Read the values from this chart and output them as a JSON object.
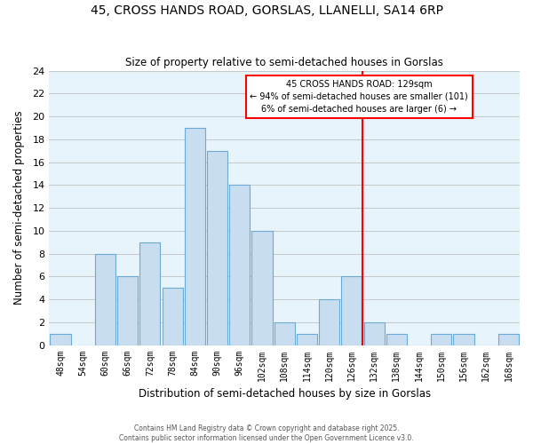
{
  "title": "45, CROSS HANDS ROAD, GORSLAS, LLANELLI, SA14 6RP",
  "subtitle": "Size of property relative to semi-detached houses in Gorslas",
  "xlabel": "Distribution of semi-detached houses by size in Gorslas",
  "ylabel": "Number of semi-detached properties",
  "bin_edges": [
    45,
    51,
    57,
    63,
    69,
    75,
    81,
    87,
    93,
    99,
    105,
    111,
    117,
    123,
    129,
    135,
    141,
    147,
    153,
    159,
    165,
    171
  ],
  "bin_labels": [
    "48sqm",
    "54sqm",
    "60sqm",
    "66sqm",
    "72sqm",
    "78sqm",
    "84sqm",
    "90sqm",
    "96sqm",
    "102sqm",
    "108sqm",
    "114sqm",
    "120sqm",
    "126sqm",
    "132sqm",
    "138sqm",
    "144sqm",
    "150sqm",
    "156sqm",
    "162sqm",
    "168sqm"
  ],
  "counts": [
    1,
    0,
    8,
    6,
    9,
    5,
    19,
    17,
    14,
    10,
    2,
    1,
    4,
    6,
    2,
    1,
    0,
    1,
    1,
    0,
    1
  ],
  "bar_color": "#c8ddf0",
  "bar_edge_color": "#6aaad4",
  "property_size": 129,
  "vline_color": "red",
  "annotation_title": "45 CROSS HANDS ROAD: 129sqm",
  "annotation_line1": "← 94% of semi-detached houses are smaller (101)",
  "annotation_line2": "6% of semi-detached houses are larger (6) →",
  "ylim": [
    0,
    24
  ],
  "yticks": [
    0,
    2,
    4,
    6,
    8,
    10,
    12,
    14,
    16,
    18,
    20,
    22,
    24
  ],
  "footer1": "Contains HM Land Registry data © Crown copyright and database right 2025.",
  "footer2": "Contains public sector information licensed under the Open Government Licence v3.0.",
  "background_color": "#e8f4fc",
  "fig_background": "#ffffff",
  "grid_color": "#c0c0c0"
}
